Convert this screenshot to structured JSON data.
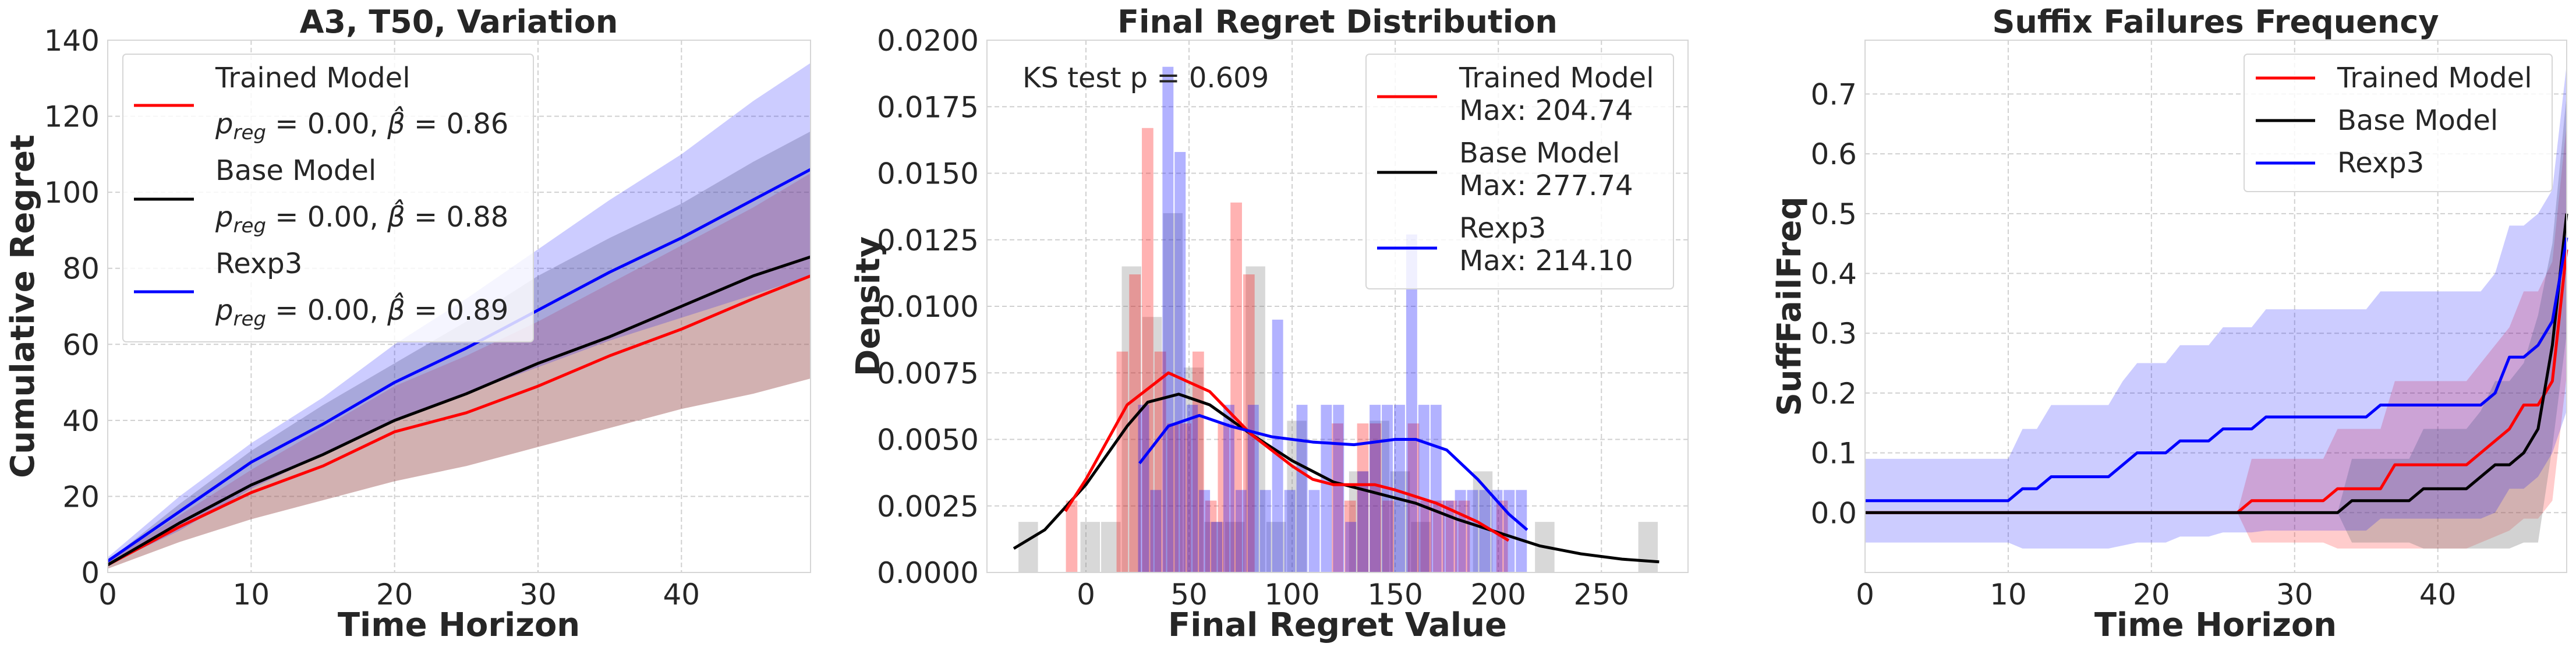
{
  "colors": {
    "trained": "#ff0000",
    "base": "#000000",
    "rexp3": "#0000ff",
    "base_fill": "#7f7f7f"
  },
  "chart_data": [
    {
      "type": "line",
      "title": "A3, T50, Variation",
      "xlabel": "Time Horizon",
      "ylabel": "Cumulative Regret",
      "xlim": [
        0,
        49
      ],
      "ylim": [
        0,
        140
      ],
      "grid": true,
      "legend_position": "top-left",
      "xticks": [
        0,
        10,
        20,
        30,
        40
      ],
      "xtick_labels": [
        "0",
        "10",
        "20",
        "30",
        "40"
      ],
      "yticks": [
        0,
        20,
        40,
        60,
        80,
        100,
        120,
        140
      ],
      "ytick_labels": [
        "0",
        "20",
        "40",
        "60",
        "80",
        "100",
        "120",
        "140"
      ],
      "x": [
        0,
        5,
        10,
        15,
        20,
        25,
        30,
        35,
        40,
        45,
        49
      ],
      "series": [
        {
          "name": "Trained Model",
          "key": "trained",
          "p_symbol": "p",
          "p_sub": "reg",
          "p_reg": "0.00",
          "beta_symbol": "β̂",
          "beta_hat": "0.86",
          "values": [
            2,
            12,
            21,
            28,
            37,
            42,
            49,
            57,
            64,
            72,
            78
          ],
          "band_upper": [
            3,
            15,
            27,
            38,
            49,
            57,
            66,
            76,
            86,
            96,
            105
          ],
          "band_lower": [
            1,
            8,
            14,
            19,
            24,
            28,
            33,
            38,
            43,
            47,
            51
          ]
        },
        {
          "name": "Base Model",
          "key": "base",
          "p_symbol": "p",
          "p_sub": "reg",
          "p_reg": "0.00",
          "beta_symbol": "β̂",
          "beta_hat": "0.88",
          "values": [
            2,
            13,
            23,
            31,
            40,
            47,
            55,
            62,
            70,
            78,
            83
          ],
          "band_upper": [
            3,
            18,
            32,
            44,
            55,
            66,
            78,
            88,
            97,
            108,
            116
          ],
          "band_lower": [
            1,
            8,
            14,
            19,
            24,
            28,
            33,
            38,
            43,
            47,
            51
          ]
        },
        {
          "name": "Rexp3",
          "key": "rexp3",
          "p_symbol": "p",
          "p_sub": "reg",
          "p_reg": "0.00",
          "beta_symbol": "β̂",
          "beta_hat": "0.89",
          "values": [
            3,
            16,
            29,
            39,
            50,
            59,
            69,
            79,
            88,
            98,
            106
          ],
          "band_upper": [
            4,
            20,
            34,
            46,
            60,
            72,
            85,
            98,
            110,
            124,
            134
          ],
          "band_lower": [
            2,
            11,
            22,
            31,
            40,
            47,
            54,
            61,
            67,
            73,
            78
          ]
        }
      ]
    },
    {
      "type": "histogram",
      "title": "Final Regret Distribution",
      "xlabel": "Final Regret Value",
      "ylabel": "Density",
      "annotation": "KS test p = 0.609",
      "xlim": [
        -48,
        292
      ],
      "ylim": [
        0,
        0.02
      ],
      "grid": true,
      "legend_position": "top-right",
      "xticks": [
        0,
        50,
        100,
        150,
        200,
        250
      ],
      "xtick_labels": [
        "0",
        "50",
        "100",
        "150",
        "200",
        "250"
      ],
      "yticks": [
        0,
        0.0025,
        0.005,
        0.0075,
        0.01,
        0.0125,
        0.015,
        0.0175,
        0.02
      ],
      "ytick_labels": [
        "0.0000",
        "0.0025",
        "0.0050",
        "0.0075",
        "0.0100",
        "0.0125",
        "0.0150",
        "0.0175",
        "0.0200"
      ],
      "series": [
        {
          "name": "Base Model",
          "key": "base",
          "max_label": "Max: 277.74",
          "bin_start": -33,
          "bin_width": 10.02,
          "densities": [
            0.0019,
            0,
            0,
            0.0019,
            0.0019,
            0.0115,
            0.0096,
            0.0135,
            0.0077,
            0.0019,
            0.0019,
            0.0115,
            0.0019,
            0.0057,
            0,
            0,
            0.0038,
            0.0057,
            0.0038,
            0.0019,
            0,
            0,
            0.0038,
            0,
            0,
            0.0019,
            0,
            0,
            0,
            0,
            0.0019
          ],
          "kde_x": [
            -35,
            -20,
            0,
            20,
            30,
            45,
            60,
            80,
            100,
            120,
            140,
            160,
            180,
            200,
            220,
            240,
            260,
            278
          ],
          "kde_y": [
            0.0009,
            0.0016,
            0.0033,
            0.0055,
            0.0064,
            0.0067,
            0.0063,
            0.0052,
            0.0042,
            0.0034,
            0.003,
            0.0026,
            0.002,
            0.0015,
            0.001,
            0.0007,
            0.0005,
            0.0004
          ]
        },
        {
          "name": "Trained Model",
          "key": "trained",
          "max_label": "Max: 204.74",
          "bin_start": -10,
          "bin_width": 6.14,
          "densities": [
            0.0027,
            0,
            0,
            0,
            0.0083,
            0.0112,
            0.0167,
            0.0083,
            0.0056,
            0.0056,
            0.0083,
            0.0027,
            0.0056,
            0.0139,
            0.0112,
            0,
            0,
            0,
            0,
            0,
            0,
            0.0056,
            0.0027,
            0.0056,
            0.0056,
            0.0027,
            0,
            0.0056,
            0.0027,
            0.0027,
            0.0027,
            0.0027,
            0,
            0,
            0.0027
          ],
          "kde_x": [
            -10,
            0,
            20,
            40,
            60,
            80,
            100,
            110,
            120,
            140,
            150,
            170,
            190,
            205
          ],
          "kde_y": [
            0.0023,
            0.0035,
            0.0063,
            0.0075,
            0.0068,
            0.0052,
            0.004,
            0.0035,
            0.0033,
            0.0033,
            0.0031,
            0.0026,
            0.0019,
            0.0012
          ]
        },
        {
          "name": "Rexp3",
          "key": "rexp3",
          "max_label": "Max: 214.10",
          "bin_start": 25,
          "bin_width": 5.91,
          "densities": [
            0.0063,
            0.0031,
            0.019,
            0.0158,
            0.0063,
            0.0031,
            0.0019,
            0.0063,
            0.0031,
            0.0063,
            0.0031,
            0.0095,
            0.0031,
            0.0063,
            0.0031,
            0.0063,
            0.0063,
            0.0019,
            0.0038,
            0.0063,
            0.0063,
            0.0063,
            0.0127,
            0.0063,
            0.0063,
            0.0027,
            0.0031,
            0.0031,
            0.0031,
            0.0031,
            0.0031,
            0.0031
          ],
          "kde_x": [
            26,
            40,
            55,
            70,
            90,
            110,
            130,
            150,
            160,
            175,
            190,
            205,
            214
          ],
          "kde_y": [
            0.0041,
            0.0055,
            0.0059,
            0.0055,
            0.0051,
            0.0049,
            0.0048,
            0.005,
            0.005,
            0.0046,
            0.0035,
            0.0022,
            0.0016
          ]
        }
      ],
      "legend_order": [
        "trained",
        "base",
        "rexp3"
      ]
    },
    {
      "type": "line",
      "title": "Suffix Failures Frequency",
      "xlabel": "Time Horizon",
      "ylabel": "SuffFailFreq",
      "xlim": [
        0,
        49
      ],
      "ylim": [
        -0.1,
        0.79
      ],
      "grid": true,
      "legend_position": "top-right",
      "xticks": [
        0,
        10,
        20,
        30,
        40
      ],
      "xtick_labels": [
        "0",
        "10",
        "20",
        "30",
        "40"
      ],
      "yticks": [
        0,
        0.1,
        0.2,
        0.3,
        0.4,
        0.5,
        0.6,
        0.7
      ],
      "ytick_labels": [
        "0.0",
        "0.1",
        "0.2",
        "0.3",
        "0.4",
        "0.5",
        "0.6",
        "0.7"
      ],
      "x": [
        0,
        1,
        2,
        3,
        4,
        5,
        6,
        7,
        8,
        9,
        10,
        11,
        12,
        13,
        14,
        15,
        16,
        17,
        18,
        19,
        20,
        21,
        22,
        23,
        24,
        25,
        26,
        27,
        28,
        29,
        30,
        31,
        32,
        33,
        34,
        35,
        36,
        37,
        38,
        39,
        40,
        41,
        42,
        43,
        44,
        45,
        46,
        47,
        48,
        49
      ],
      "series": [
        {
          "name": "Trained Model",
          "key": "trained",
          "values": [
            0,
            0,
            0,
            0,
            0,
            0,
            0,
            0,
            0,
            0,
            0,
            0,
            0,
            0,
            0,
            0,
            0,
            0,
            0,
            0,
            0,
            0,
            0,
            0,
            0,
            0,
            0,
            0.02,
            0.02,
            0.02,
            0.02,
            0.02,
            0.02,
            0.04,
            0.04,
            0.04,
            0.04,
            0.08,
            0.08,
            0.08,
            0.08,
            0.08,
            0.08,
            0.1,
            0.12,
            0.14,
            0.18,
            0.18,
            0.22,
            0.44
          ],
          "band_upper": [
            0,
            0,
            0,
            0,
            0,
            0,
            0,
            0,
            0,
            0,
            0,
            0,
            0,
            0,
            0,
            0,
            0,
            0,
            0,
            0,
            0,
            0,
            0,
            0,
            0,
            0,
            0,
            0.09,
            0.09,
            0.09,
            0.09,
            0.09,
            0.09,
            0.14,
            0.14,
            0.14,
            0.14,
            0.22,
            0.22,
            0.22,
            0.22,
            0.22,
            0.22,
            0.25,
            0.28,
            0.31,
            0.37,
            0.37,
            0.42,
            0.65
          ],
          "band_lower": [
            0,
            0,
            0,
            0,
            0,
            0,
            0,
            0,
            0,
            0,
            0,
            0,
            0,
            0,
            0,
            0,
            0,
            0,
            0,
            0,
            0,
            0,
            0,
            0,
            0,
            0,
            0,
            -0.05,
            -0.05,
            -0.05,
            -0.05,
            -0.05,
            -0.05,
            -0.06,
            -0.06,
            -0.06,
            -0.06,
            -0.06,
            -0.06,
            -0.06,
            -0.06,
            -0.06,
            -0.06,
            -0.05,
            -0.04,
            -0.03,
            -0.01,
            -0.01,
            0.02,
            0.23
          ]
        },
        {
          "name": "Base Model",
          "key": "base",
          "values": [
            0,
            0,
            0,
            0,
            0,
            0,
            0,
            0,
            0,
            0,
            0,
            0,
            0,
            0,
            0,
            0,
            0,
            0,
            0,
            0,
            0,
            0,
            0,
            0,
            0,
            0,
            0,
            0,
            0,
            0,
            0,
            0,
            0,
            0,
            0.02,
            0.02,
            0.02,
            0.02,
            0.02,
            0.04,
            0.04,
            0.04,
            0.04,
            0.06,
            0.08,
            0.08,
            0.1,
            0.14,
            0.28,
            0.5
          ],
          "band_upper": [
            0,
            0,
            0,
            0,
            0,
            0,
            0,
            0,
            0,
            0,
            0,
            0,
            0,
            0,
            0,
            0,
            0,
            0,
            0,
            0,
            0,
            0,
            0,
            0,
            0,
            0,
            0,
            0,
            0,
            0,
            0,
            0,
            0,
            0,
            0.09,
            0.09,
            0.09,
            0.09,
            0.09,
            0.14,
            0.14,
            0.14,
            0.14,
            0.17,
            0.22,
            0.22,
            0.25,
            0.33,
            0.45,
            0.7
          ],
          "band_lower": [
            0,
            0,
            0,
            0,
            0,
            0,
            0,
            0,
            0,
            0,
            0,
            0,
            0,
            0,
            0,
            0,
            0,
            0,
            0,
            0,
            0,
            0,
            0,
            0,
            0,
            0,
            0,
            0,
            0,
            0,
            0,
            0,
            0,
            0,
            -0.05,
            -0.05,
            -0.05,
            -0.05,
            -0.05,
            -0.06,
            -0.06,
            -0.06,
            -0.06,
            -0.06,
            -0.06,
            -0.06,
            -0.05,
            -0.05,
            0.11,
            0.3
          ]
        },
        {
          "name": "Rexp3",
          "key": "rexp3",
          "values": [
            0.02,
            0.02,
            0.02,
            0.02,
            0.02,
            0.02,
            0.02,
            0.02,
            0.02,
            0.02,
            0.02,
            0.04,
            0.04,
            0.06,
            0.06,
            0.06,
            0.06,
            0.06,
            0.08,
            0.1,
            0.1,
            0.1,
            0.12,
            0.12,
            0.12,
            0.14,
            0.14,
            0.14,
            0.16,
            0.16,
            0.16,
            0.16,
            0.16,
            0.16,
            0.16,
            0.16,
            0.18,
            0.18,
            0.18,
            0.18,
            0.18,
            0.18,
            0.18,
            0.18,
            0.2,
            0.26,
            0.26,
            0.28,
            0.32,
            0.46
          ],
          "band_upper": [
            0.09,
            0.09,
            0.09,
            0.09,
            0.09,
            0.09,
            0.09,
            0.09,
            0.09,
            0.09,
            0.09,
            0.14,
            0.14,
            0.18,
            0.18,
            0.18,
            0.18,
            0.18,
            0.22,
            0.25,
            0.25,
            0.25,
            0.28,
            0.28,
            0.28,
            0.31,
            0.31,
            0.31,
            0.34,
            0.34,
            0.34,
            0.34,
            0.34,
            0.34,
            0.34,
            0.34,
            0.37,
            0.37,
            0.37,
            0.37,
            0.37,
            0.37,
            0.37,
            0.37,
            0.4,
            0.48,
            0.48,
            0.5,
            0.54,
            0.75
          ],
          "band_lower": [
            -0.05,
            -0.05,
            -0.05,
            -0.05,
            -0.05,
            -0.05,
            -0.05,
            -0.05,
            -0.05,
            -0.05,
            -0.05,
            -0.06,
            -0.06,
            -0.06,
            -0.06,
            -0.06,
            -0.06,
            -0.06,
            -0.055,
            -0.05,
            -0.05,
            -0.05,
            -0.04,
            -0.04,
            -0.04,
            -0.033,
            -0.033,
            -0.033,
            -0.03,
            -0.03,
            -0.03,
            -0.03,
            -0.03,
            -0.03,
            -0.03,
            -0.03,
            -0.01,
            -0.01,
            -0.01,
            -0.01,
            -0.01,
            -0.01,
            -0.01,
            -0.01,
            0,
            0.04,
            0.04,
            0.06,
            0.1,
            0.17
          ]
        }
      ],
      "legend_order": [
        "trained",
        "base",
        "rexp3"
      ]
    }
  ]
}
